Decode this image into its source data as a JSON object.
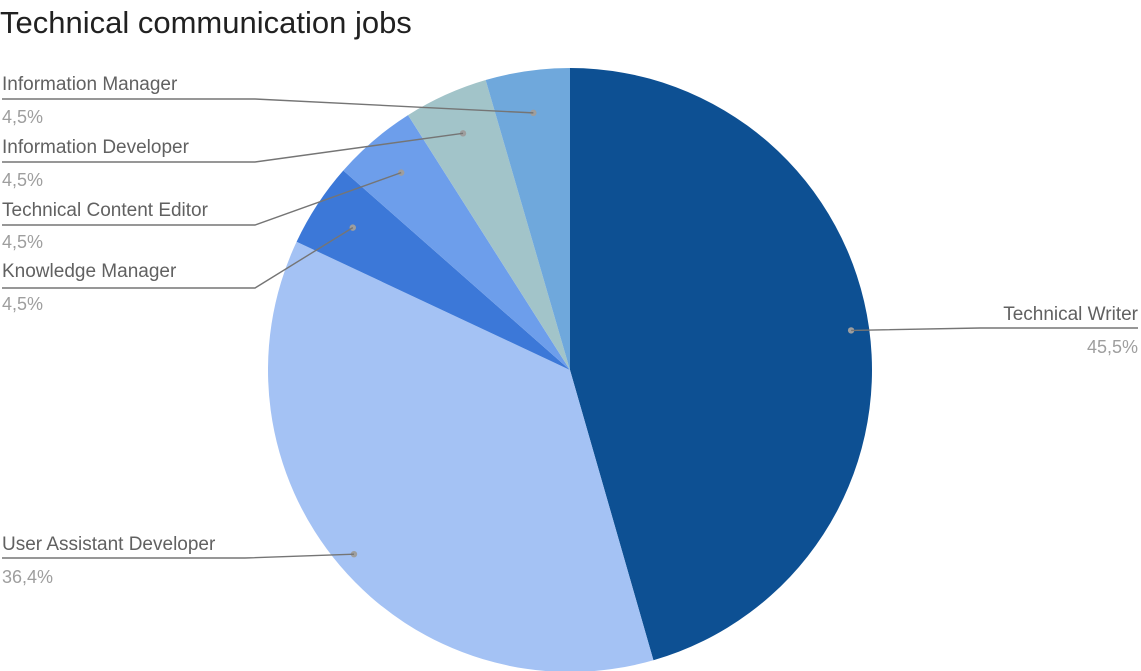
{
  "chart_data": {
    "type": "pie",
    "title": "Technical communication jobs",
    "slices": [
      {
        "label": "Technical Writer",
        "value": 45.5,
        "percent_label": "45,5%",
        "color": "#0d5093"
      },
      {
        "label": "User Assistant Developer",
        "value": 36.4,
        "percent_label": "36,4%",
        "color": "#a4c2f4"
      },
      {
        "label": "Knowledge Manager",
        "value": 4.5,
        "percent_label": "4,5%",
        "color": "#3c78d8"
      },
      {
        "label": "Technical Content Editor",
        "value": 4.5,
        "percent_label": "4,5%",
        "color": "#6d9eeb"
      },
      {
        "label": "Information Developer",
        "value": 4.5,
        "percent_label": "4,5%",
        "color": "#a2c4c9"
      },
      {
        "label": "Information Manager",
        "value": 4.5,
        "percent_label": "4,5%",
        "color": "#6fa8dc"
      }
    ],
    "start": "top",
    "direction": "clockwise"
  }
}
